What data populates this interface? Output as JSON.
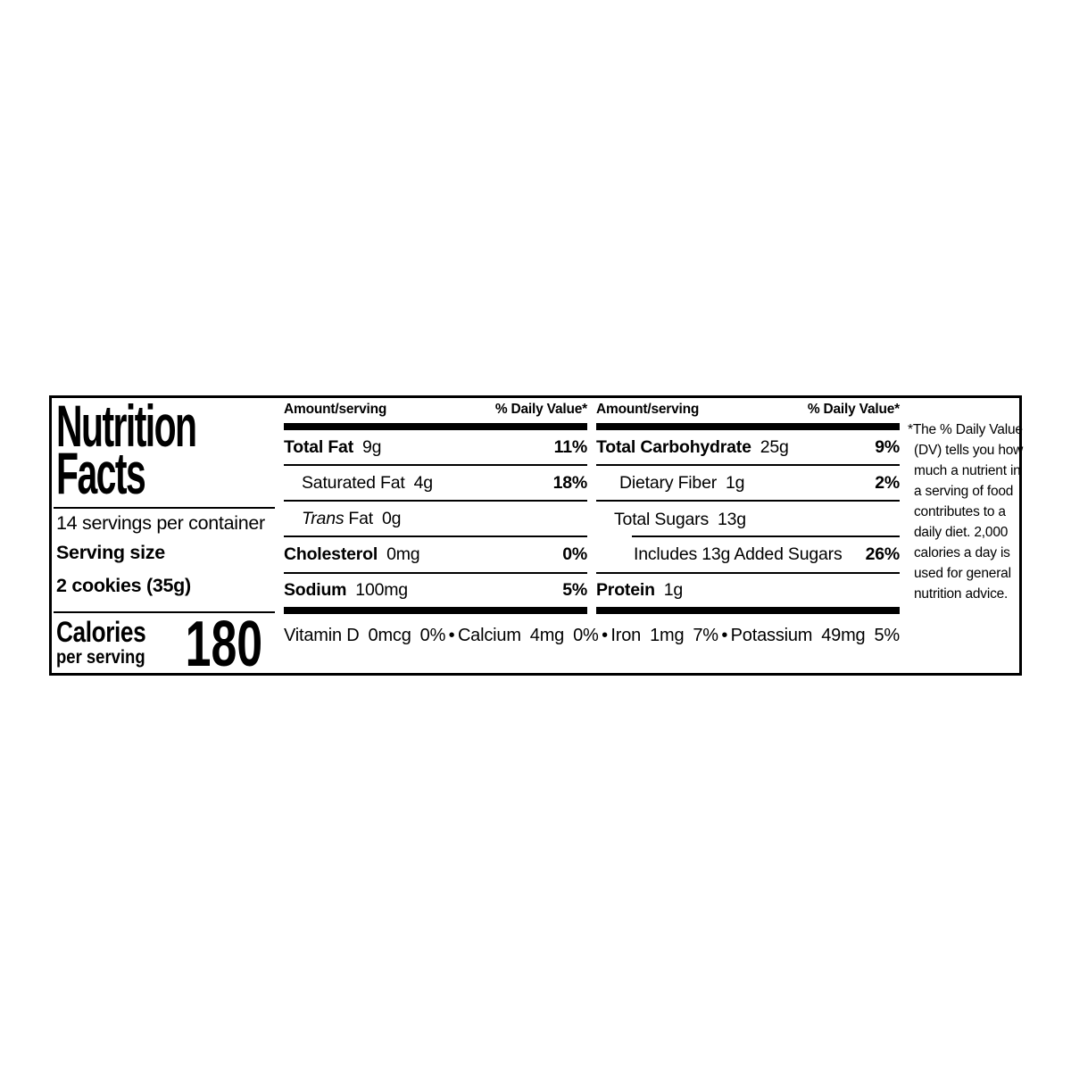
{
  "label": {
    "title_line1": "Nutrition",
    "title_line2": "Facts",
    "servings_per_container": "14 servings per container",
    "serving_size_label": "Serving size",
    "serving_size_value": "2 cookies (35g)",
    "calories_label": "Calories",
    "calories_sublabel": "per serving",
    "calories_value": "180",
    "bullet": "•",
    "columns": [
      {
        "header_left": "Amount/serving",
        "header_right": "% Daily Value*",
        "rows": [
          {
            "name": "Total Fat",
            "amount": "9g",
            "dv": "11%"
          },
          {
            "name": "Saturated Fat",
            "amount": "4g",
            "dv": "18%"
          },
          {
            "name_italic": "Trans",
            "name_rest": "Fat",
            "amount": "0g",
            "dv": ""
          },
          {
            "name": "Cholesterol",
            "amount": "0mg",
            "dv": "0%"
          },
          {
            "name": "Sodium",
            "amount": "100mg",
            "dv": "5%"
          }
        ]
      },
      {
        "header_left": "Amount/serving",
        "header_right": "% Daily Value*",
        "rows": [
          {
            "name": "Total Carbohydrate",
            "amount": "25g",
            "dv": "9%"
          },
          {
            "name": "Dietary Fiber",
            "amount": "1g",
            "dv": "2%"
          },
          {
            "name": "Total Sugars",
            "amount": "13g",
            "dv": ""
          },
          {
            "name": "Includes 13g Added Sugars",
            "amount": "",
            "dv": "26%"
          },
          {
            "name": "Protein",
            "amount": "1g",
            "dv": ""
          }
        ]
      }
    ],
    "micronutrients": [
      {
        "name": "Vitamin D",
        "amount": "0mcg",
        "dv": "0%"
      },
      {
        "name": "Calcium",
        "amount": "4mg",
        "dv": "0%"
      },
      {
        "name": "Iron",
        "amount": "1mg",
        "dv": "7%"
      },
      {
        "name": "Potassium",
        "amount": "49mg",
        "dv": "5%"
      }
    ],
    "footnote": "*The % Daily Value (DV) tells you how much a nutrient in a serving of food contributes to a daily diet. 2,000 calories a day is used for general nutrition advice.",
    "footnote_lines": [
      "*The % Daily Value",
      "(DV) tells you how",
      "much a nutrient in",
      "a serving of food",
      "contributes to a",
      "daily diet. 2,000",
      "calories a day is",
      "used for general",
      "nutrition advice."
    ]
  }
}
